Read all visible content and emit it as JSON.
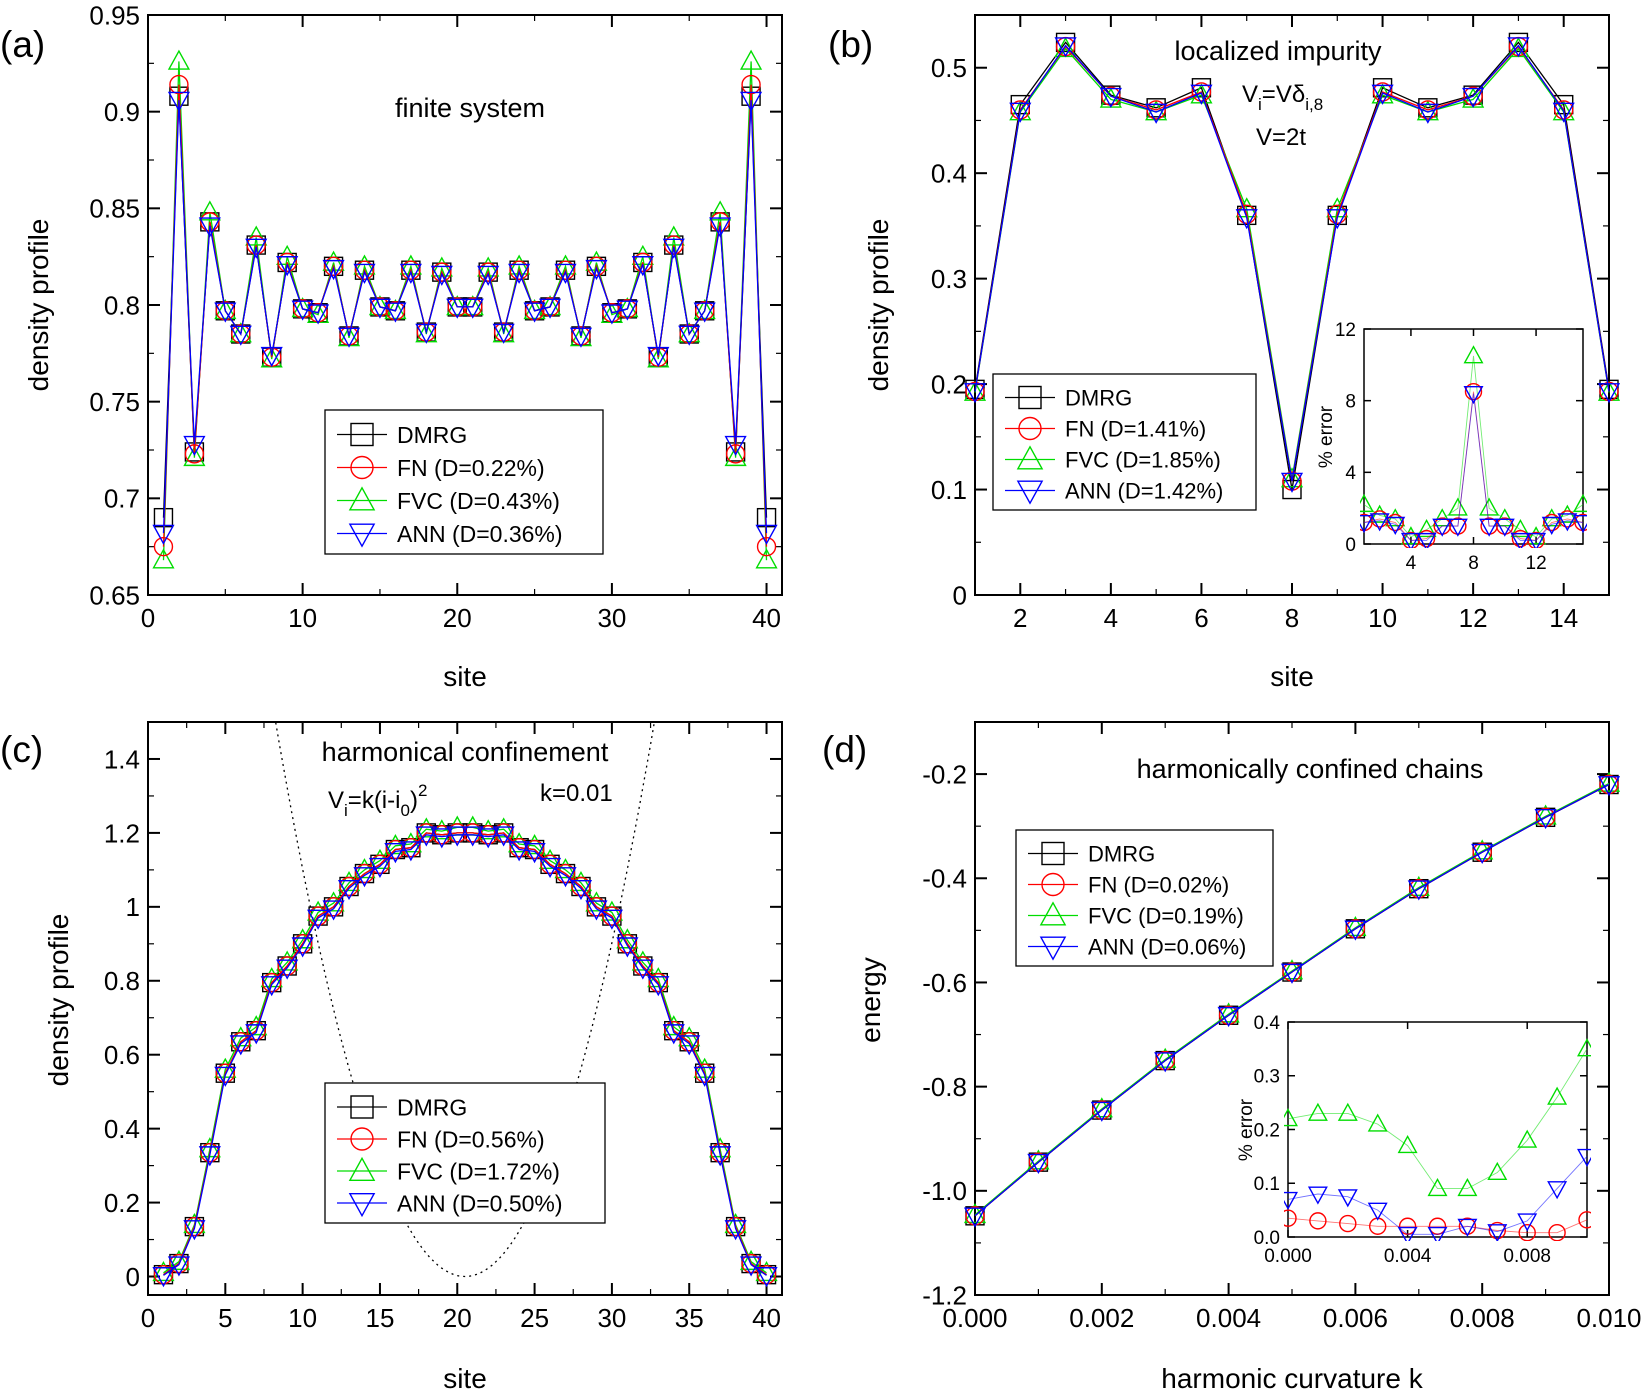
{
  "chart_data": [
    {
      "panel": "(a)",
      "type": "line",
      "annotation": "finite system",
      "xlabel": "site",
      "ylabel": "density profile",
      "xlim": [
        0,
        41
      ],
      "ylim": [
        0.65,
        0.95
      ],
      "xticks": [
        0,
        10,
        20,
        30,
        40
      ],
      "yticks": [
        0.65,
        0.7,
        0.75,
        0.8,
        0.85,
        0.9,
        0.95
      ],
      "x": [
        1,
        2,
        3,
        4,
        5,
        6,
        7,
        8,
        9,
        10,
        11,
        12,
        13,
        14,
        15,
        16,
        17,
        18,
        19,
        20,
        21,
        22,
        23,
        24,
        25,
        26,
        27,
        28,
        29,
        30,
        31,
        32,
        33,
        34,
        35,
        36,
        37,
        38,
        39,
        40
      ],
      "series": [
        {
          "name": "DMRG",
          "legend": "DMRG",
          "values": [
            0.69,
            0.908,
            0.724,
            0.843,
            0.797,
            0.785,
            0.831,
            0.773,
            0.822,
            0.798,
            0.796,
            0.82,
            0.784,
            0.818,
            0.799,
            0.797,
            0.818,
            0.786,
            0.817,
            0.799,
            0.799,
            0.817,
            0.786,
            0.818,
            0.797,
            0.799,
            0.818,
            0.784,
            0.82,
            0.796,
            0.798,
            0.822,
            0.773,
            0.831,
            0.785,
            0.797,
            0.843,
            0.724,
            0.908,
            0.69
          ]
        },
        {
          "name": "FN",
          "legend": "FN   (D=0.22%)",
          "values": [
            0.675,
            0.914,
            0.723,
            0.843,
            0.797,
            0.785,
            0.831,
            0.773,
            0.822,
            0.798,
            0.796,
            0.82,
            0.784,
            0.818,
            0.799,
            0.797,
            0.818,
            0.786,
            0.817,
            0.799,
            0.799,
            0.817,
            0.786,
            0.818,
            0.797,
            0.799,
            0.818,
            0.784,
            0.82,
            0.796,
            0.798,
            0.822,
            0.773,
            0.831,
            0.785,
            0.797,
            0.843,
            0.723,
            0.914,
            0.675
          ]
        },
        {
          "name": "FVC",
          "legend": "FVC (D=0.43%)",
          "values": [
            0.668,
            0.926,
            0.721,
            0.848,
            0.797,
            0.785,
            0.835,
            0.772,
            0.825,
            0.798,
            0.795,
            0.822,
            0.783,
            0.82,
            0.799,
            0.797,
            0.82,
            0.785,
            0.819,
            0.799,
            0.799,
            0.819,
            0.785,
            0.82,
            0.797,
            0.799,
            0.82,
            0.783,
            0.822,
            0.795,
            0.798,
            0.825,
            0.772,
            0.835,
            0.785,
            0.797,
            0.848,
            0.721,
            0.926,
            0.668
          ]
        },
        {
          "name": "ANN",
          "legend": "ANN (D=0.36%)",
          "values": [
            0.682,
            0.906,
            0.728,
            0.841,
            0.797,
            0.785,
            0.83,
            0.774,
            0.821,
            0.798,
            0.796,
            0.819,
            0.784,
            0.817,
            0.799,
            0.797,
            0.817,
            0.786,
            0.816,
            0.799,
            0.799,
            0.816,
            0.786,
            0.817,
            0.797,
            0.799,
            0.817,
            0.784,
            0.819,
            0.796,
            0.798,
            0.821,
            0.774,
            0.83,
            0.785,
            0.797,
            0.841,
            0.728,
            0.906,
            0.682
          ]
        }
      ]
    },
    {
      "panel": "(b)",
      "type": "line",
      "annotation": "localized impurity",
      "formula1": "V",
      "formula1_sub": "i",
      "formula1_mid": "=Vδ",
      "formula1_sub2": "i,8",
      "formula2": "V=2t",
      "xlabel": "site",
      "ylabel": "density profile",
      "xlim": [
        1,
        15
      ],
      "ylim": [
        0.0,
        0.55
      ],
      "xticks": [
        2,
        4,
        6,
        8,
        10,
        12,
        14
      ],
      "yticks": [
        0.0,
        0.1,
        0.2,
        0.3,
        0.4,
        0.5
      ],
      "x": [
        1,
        2,
        3,
        4,
        5,
        6,
        7,
        8,
        9,
        10,
        11,
        12,
        13,
        14,
        15
      ],
      "series": [
        {
          "name": "DMRG",
          "legend": "DMRG",
          "values": [
            0.195,
            0.465,
            0.524,
            0.474,
            0.462,
            0.481,
            0.36,
            0.1,
            0.36,
            0.481,
            0.462,
            0.474,
            0.524,
            0.465,
            0.195
          ]
        },
        {
          "name": "FN",
          "legend": "FN (D=1.41%)",
          "values": [
            0.193,
            0.46,
            0.52,
            0.473,
            0.46,
            0.477,
            0.361,
            0.108,
            0.361,
            0.477,
            0.46,
            0.473,
            0.52,
            0.46,
            0.193
          ]
        },
        {
          "name": "FVC",
          "legend": "FVC (D=1.85%)",
          "values": [
            0.192,
            0.458,
            0.518,
            0.47,
            0.458,
            0.474,
            0.366,
            0.11,
            0.366,
            0.474,
            0.458,
            0.47,
            0.518,
            0.458,
            0.192
          ]
        },
        {
          "name": "ANN",
          "legend": "ANN (D=1.42%)",
          "values": [
            0.193,
            0.459,
            0.521,
            0.473,
            0.458,
            0.476,
            0.358,
            0.108,
            0.358,
            0.476,
            0.458,
            0.473,
            0.521,
            0.459,
            0.193
          ]
        }
      ],
      "inset": {
        "type": "line",
        "ylabel": "% error",
        "xlim": [
          1,
          15
        ],
        "ylim": [
          0,
          12
        ],
        "xticks": [
          4,
          8,
          12
        ],
        "yticks": [
          0,
          4,
          8,
          12
        ],
        "x": [
          1,
          2,
          3,
          4,
          5,
          6,
          7,
          8,
          9,
          10,
          11,
          12,
          13,
          14,
          15
        ],
        "series": [
          {
            "name": "FN",
            "values": [
              1.2,
              1.4,
              1.2,
              0.2,
              0.3,
              1.0,
              1.0,
              8.5,
              1.0,
              1.0,
              0.3,
              0.2,
              1.2,
              1.4,
              1.2
            ]
          },
          {
            "name": "FVC",
            "values": [
              2.2,
              1.6,
              1.4,
              0.4,
              0.8,
              1.4,
              2.0,
              10.5,
              2.0,
              1.4,
              0.8,
              0.4,
              1.4,
              1.6,
              2.2
            ]
          },
          {
            "name": "ANN",
            "values": [
              1.2,
              1.3,
              1.1,
              0.2,
              0.2,
              1.0,
              1.0,
              8.4,
              1.0,
              1.0,
              0.2,
              0.2,
              1.1,
              1.3,
              1.2
            ]
          }
        ]
      }
    },
    {
      "panel": "(c)",
      "type": "line",
      "annotation": "harmonical confinement",
      "formula1": "V",
      "formula1_sub": "i",
      "formula1_mid": "=k(i-i",
      "formula1_sub2": "0",
      "formula1_end": ")",
      "formula1_sup": "2",
      "formula2": "k=0.01",
      "xlabel": "site",
      "ylabel": "density profile",
      "xlim": [
        0,
        41
      ],
      "ylim": [
        -0.05,
        1.5
      ],
      "xticks": [
        0,
        5,
        10,
        15,
        20,
        25,
        30,
        35,
        40
      ],
      "yticks": [
        0.0,
        0.2,
        0.4,
        0.6,
        0.8,
        1.0,
        1.2,
        1.4
      ],
      "potential": {
        "k": 0.01,
        "i0": 20.5
      },
      "x": [
        1,
        2,
        3,
        4,
        5,
        6,
        7,
        8,
        9,
        10,
        11,
        12,
        13,
        14,
        15,
        16,
        17,
        18,
        19,
        20,
        21,
        22,
        23,
        24,
        25,
        26,
        27,
        28,
        29,
        30,
        31,
        32,
        33,
        34,
        35,
        36,
        37,
        38,
        39,
        40
      ],
      "series": [
        {
          "name": "DMRG",
          "legend": "DMRG",
          "values": [
            0.005,
            0.035,
            0.135,
            0.335,
            0.55,
            0.635,
            0.665,
            0.795,
            0.84,
            0.9,
            0.975,
            1.0,
            1.055,
            1.09,
            1.115,
            1.155,
            1.16,
            1.2,
            1.195,
            1.2,
            1.2,
            1.195,
            1.2,
            1.16,
            1.155,
            1.115,
            1.09,
            1.055,
            1.0,
            0.975,
            0.9,
            0.84,
            0.795,
            0.665,
            0.635,
            0.55,
            0.335,
            0.135,
            0.035,
            0.005
          ]
        },
        {
          "name": "FN",
          "legend": "FN (D=0.56%)",
          "values": [
            0.005,
            0.035,
            0.135,
            0.335,
            0.55,
            0.635,
            0.665,
            0.795,
            0.84,
            0.9,
            0.975,
            1.0,
            1.055,
            1.09,
            1.115,
            1.155,
            1.16,
            1.2,
            1.195,
            1.2,
            1.2,
            1.195,
            1.2,
            1.16,
            1.155,
            1.115,
            1.09,
            1.055,
            1.0,
            0.975,
            0.9,
            0.84,
            0.795,
            0.665,
            0.635,
            0.55,
            0.335,
            0.135,
            0.035,
            0.005
          ]
        },
        {
          "name": "FVC",
          "legend": "FVC (D=1.72%)",
          "values": [
            0.01,
            0.04,
            0.14,
            0.345,
            0.56,
            0.645,
            0.675,
            0.805,
            0.85,
            0.91,
            0.985,
            1.01,
            1.065,
            1.1,
            1.125,
            1.165,
            1.17,
            1.21,
            1.205,
            1.215,
            1.215,
            1.205,
            1.21,
            1.17,
            1.165,
            1.125,
            1.1,
            1.065,
            1.01,
            0.985,
            0.91,
            0.85,
            0.805,
            0.675,
            0.645,
            0.56,
            0.345,
            0.14,
            0.04,
            0.01
          ]
        },
        {
          "name": "ANN",
          "legend": "ANN (D=0.50%)",
          "values": [
            0.003,
            0.032,
            0.13,
            0.33,
            0.545,
            0.63,
            0.66,
            0.79,
            0.835,
            0.895,
            0.97,
            0.995,
            1.05,
            1.085,
            1.11,
            1.15,
            1.155,
            1.195,
            1.19,
            1.195,
            1.195,
            1.19,
            1.195,
            1.155,
            1.15,
            1.11,
            1.085,
            1.05,
            0.995,
            0.97,
            0.895,
            0.835,
            0.79,
            0.66,
            0.63,
            0.545,
            0.33,
            0.13,
            0.032,
            0.003
          ]
        }
      ]
    },
    {
      "panel": "(d)",
      "type": "line",
      "annotation": "harmonically confined chains",
      "xlabel": "harmonic curvature k",
      "ylabel": "energy",
      "xlim": [
        0.0,
        0.01
      ],
      "ylim": [
        -1.2,
        -0.1
      ],
      "xticks": [
        "0.000",
        "0.002",
        "0.004",
        "0.006",
        "0.008",
        "0.010"
      ],
      "yticks": [
        "-1.2",
        "-1.0",
        "-0.8",
        "-0.6",
        "-0.4",
        "-0.2"
      ],
      "x": [
        0.0,
        0.001,
        0.002,
        0.003,
        0.004,
        0.005,
        0.006,
        0.007,
        0.008,
        0.009,
        0.01
      ],
      "series": [
        {
          "name": "DMRG",
          "legend": "DMRG",
          "values": [
            -1.048,
            -0.945,
            -0.845,
            -0.75,
            -0.663,
            -0.58,
            -0.497,
            -0.42,
            -0.35,
            -0.283,
            -0.22
          ]
        },
        {
          "name": "FN",
          "legend": "FN   (D=0.02%)",
          "values": [
            -1.048,
            -0.945,
            -0.845,
            -0.75,
            -0.663,
            -0.58,
            -0.497,
            -0.42,
            -0.35,
            -0.283,
            -0.22
          ]
        },
        {
          "name": "FVC",
          "legend": "FVC (D=0.19%)",
          "values": [
            -1.046,
            -0.943,
            -0.843,
            -0.748,
            -0.661,
            -0.578,
            -0.495,
            -0.418,
            -0.348,
            -0.281,
            -0.218
          ]
        },
        {
          "name": "ANN",
          "legend": "ANN (D=0.06%)",
          "values": [
            -1.048,
            -0.945,
            -0.845,
            -0.75,
            -0.663,
            -0.58,
            -0.497,
            -0.42,
            -0.35,
            -0.283,
            -0.22
          ]
        }
      ],
      "inset": {
        "type": "line",
        "ylabel": "% error",
        "xlim": [
          0.0,
          0.01
        ],
        "ylim": [
          0,
          0.4
        ],
        "xticks": [
          "0.000",
          "0.004",
          "0.008"
        ],
        "yticks": [
          "0.0",
          "0.1",
          "0.2",
          "0.3",
          "0.4"
        ],
        "x": [
          0.0,
          0.001,
          0.002,
          0.003,
          0.004,
          0.005,
          0.006,
          0.007,
          0.008,
          0.009,
          0.01
        ],
        "series": [
          {
            "name": "FN",
            "values": [
              0.035,
              0.03,
              0.025,
              0.02,
              0.02,
              0.02,
              0.02,
              0.012,
              0.008,
              0.008,
              0.032
            ]
          },
          {
            "name": "FVC",
            "values": [
              0.22,
              0.23,
              0.23,
              0.21,
              0.17,
              0.09,
              0.09,
              0.12,
              0.18,
              0.26,
              0.35
            ]
          },
          {
            "name": "ANN",
            "values": [
              0.07,
              0.08,
              0.075,
              0.05,
              0.005,
              0.005,
              0.02,
              0.01,
              0.03,
              0.09,
              0.15
            ]
          }
        ]
      }
    }
  ],
  "styles": {
    "DMRG": {
      "color": "#000000",
      "marker": "square"
    },
    "FN": {
      "color": "#ff0000",
      "marker": "circle"
    },
    "FVC": {
      "color": "#00dd00",
      "marker": "triangle-up"
    },
    "ANN": {
      "color": "#0000ff",
      "marker": "triangle-down"
    }
  }
}
